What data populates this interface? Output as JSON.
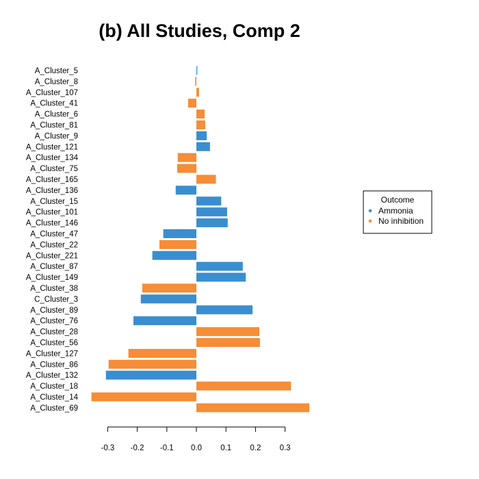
{
  "chart_data": {
    "type": "bar",
    "orientation": "horizontal",
    "title": "(b) All Studies, Comp 2",
    "xlabel": "",
    "ylabel": "",
    "xlim": [
      -0.36,
      0.39
    ],
    "xticks": [
      "-0.3",
      "-0.2",
      "-0.1",
      "0.0",
      "0.1",
      "0.2",
      "0.3"
    ],
    "grid": false,
    "legend": {
      "title": "Outcome",
      "placement": "right",
      "entries": [
        {
          "name": "Ammonia",
          "color": "#3a8ed0"
        },
        {
          "name": "No inhibition",
          "color": "#f68d37"
        }
      ]
    },
    "bars": [
      {
        "label": "A_Cluster_5",
        "value": 0.003,
        "outcome": "Ammonia"
      },
      {
        "label": "A_Cluster_8",
        "value": -0.004,
        "outcome": "No inhibition"
      },
      {
        "label": "A_Cluster_107",
        "value": 0.009,
        "outcome": "No inhibition"
      },
      {
        "label": "A_Cluster_41",
        "value": -0.028,
        "outcome": "No inhibition"
      },
      {
        "label": "A_Cluster_6",
        "value": 0.028,
        "outcome": "No inhibition"
      },
      {
        "label": "A_Cluster_81",
        "value": 0.03,
        "outcome": "No inhibition"
      },
      {
        "label": "A_Cluster_9",
        "value": 0.035,
        "outcome": "Ammonia"
      },
      {
        "label": "A_Cluster_121",
        "value": 0.046,
        "outcome": "Ammonia"
      },
      {
        "label": "A_Cluster_134",
        "value": -0.063,
        "outcome": "No inhibition"
      },
      {
        "label": "A_Cluster_75",
        "value": -0.065,
        "outcome": "No inhibition"
      },
      {
        "label": "A_Cluster_165",
        "value": 0.066,
        "outcome": "No inhibition"
      },
      {
        "label": "A_Cluster_136",
        "value": -0.07,
        "outcome": "Ammonia"
      },
      {
        "label": "A_Cluster_15",
        "value": 0.084,
        "outcome": "Ammonia"
      },
      {
        "label": "A_Cluster_101",
        "value": 0.104,
        "outcome": "Ammonia"
      },
      {
        "label": "A_Cluster_146",
        "value": 0.106,
        "outcome": "Ammonia"
      },
      {
        "label": "A_Cluster_47",
        "value": -0.112,
        "outcome": "Ammonia"
      },
      {
        "label": "A_Cluster_22",
        "value": -0.125,
        "outcome": "No inhibition"
      },
      {
        "label": "A_Cluster_221",
        "value": -0.149,
        "outcome": "Ammonia"
      },
      {
        "label": "A_Cluster_87",
        "value": 0.157,
        "outcome": "Ammonia"
      },
      {
        "label": "A_Cluster_149",
        "value": 0.167,
        "outcome": "Ammonia"
      },
      {
        "label": "A_Cluster_38",
        "value": -0.183,
        "outcome": "No inhibition"
      },
      {
        "label": "C_Cluster_3",
        "value": -0.188,
        "outcome": "Ammonia"
      },
      {
        "label": "A_Cluster_89",
        "value": 0.19,
        "outcome": "Ammonia"
      },
      {
        "label": "A_Cluster_76",
        "value": -0.213,
        "outcome": "Ammonia"
      },
      {
        "label": "A_Cluster_28",
        "value": 0.213,
        "outcome": "No inhibition"
      },
      {
        "label": "A_Cluster_56",
        "value": 0.215,
        "outcome": "No inhibition"
      },
      {
        "label": "A_Cluster_127",
        "value": -0.23,
        "outcome": "No inhibition"
      },
      {
        "label": "A_Cluster_86",
        "value": -0.297,
        "outcome": "No inhibition"
      },
      {
        "label": "A_Cluster_132",
        "value": -0.306,
        "outcome": "Ammonia"
      },
      {
        "label": "A_Cluster_18",
        "value": 0.32,
        "outcome": "No inhibition"
      },
      {
        "label": "A_Cluster_14",
        "value": -0.355,
        "outcome": "No inhibition"
      },
      {
        "label": "A_Cluster_69",
        "value": 0.382,
        "outcome": "No inhibition"
      }
    ]
  }
}
